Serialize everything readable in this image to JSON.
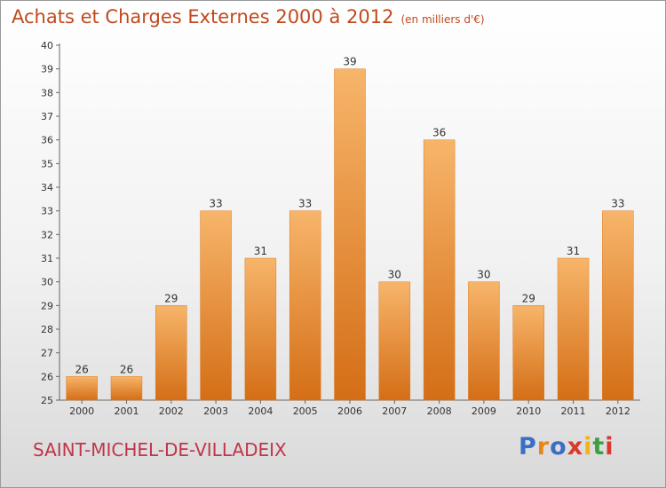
{
  "header": {
    "title": "Achats et Charges Externes 2000 à 2012",
    "unit": "(en milliers d'€)"
  },
  "commune": "SAINT-MICHEL-DE-VILLADEIX",
  "logo": {
    "letters": [
      "P",
      "r",
      "o",
      "x",
      "i",
      "t",
      "i"
    ],
    "colors": [
      "#3a6fc4",
      "#e8861a",
      "#3a6fc4",
      "#d93a2b",
      "#f0b419",
      "#3aa043",
      "#d93a2b"
    ]
  },
  "colors": {
    "bar": "#f08a2a",
    "bar_light": "#f7b56a",
    "bar_dark": "#d46e16"
  },
  "chart_data": {
    "type": "bar",
    "categories": [
      "2000",
      "2001",
      "2002",
      "2003",
      "2004",
      "2005",
      "2006",
      "2007",
      "2008",
      "2009",
      "2010",
      "2011",
      "2012"
    ],
    "values": [
      26,
      26,
      29,
      33,
      31,
      33,
      39,
      30,
      36,
      30,
      29,
      31,
      33
    ],
    "title": "Achats et Charges Externes 2000 à 2012",
    "xlabel": "",
    "ylabel": "",
    "ylim": [
      25,
      40
    ],
    "yticks": [
      25,
      26,
      27,
      28,
      29,
      30,
      31,
      32,
      33,
      34,
      35,
      36,
      37,
      38,
      39,
      40
    ],
    "grid": false,
    "data_labels": true
  }
}
